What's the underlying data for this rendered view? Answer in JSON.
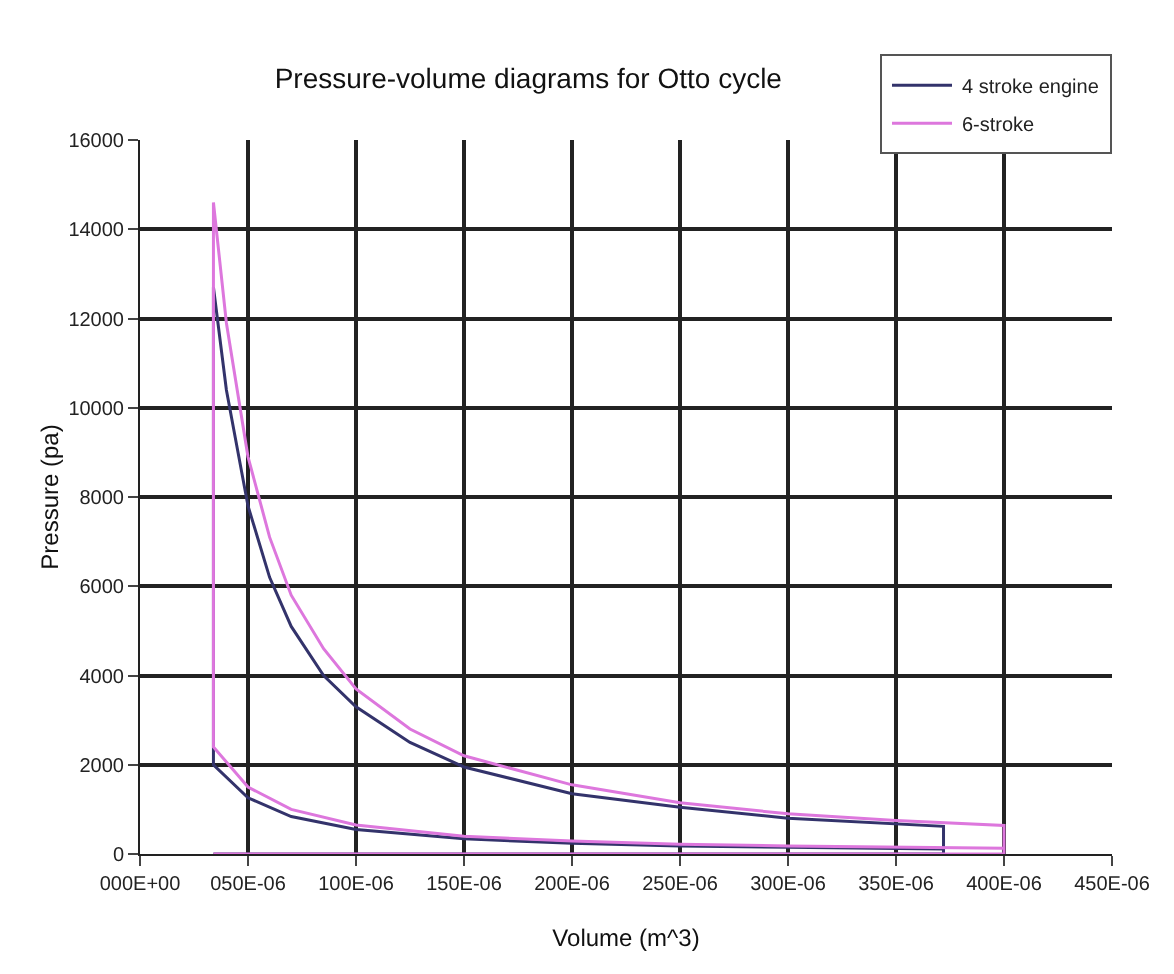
{
  "chart_data": {
    "type": "line",
    "title": "Pressure-volume diagrams for Otto cycle",
    "xlabel": "Volume (m^3)",
    "ylabel": "Pressure (pa)",
    "xlim": [
      0,
      0.00045
    ],
    "ylim": [
      0,
      16000
    ],
    "xticks": [
      {
        "value": 0,
        "label": "000E+00"
      },
      {
        "value": 5e-05,
        "label": "050E-06"
      },
      {
        "value": 0.0001,
        "label": "100E-06"
      },
      {
        "value": 0.00015,
        "label": "150E-06"
      },
      {
        "value": 0.0002,
        "label": "200E-06"
      },
      {
        "value": 0.00025,
        "label": "250E-06"
      },
      {
        "value": 0.0003,
        "label": "300E-06"
      },
      {
        "value": 0.00035,
        "label": "350E-06"
      },
      {
        "value": 0.0004,
        "label": "400E-06"
      },
      {
        "value": 0.00045,
        "label": "450E-06"
      }
    ],
    "yticks": [
      0,
      2000,
      4000,
      6000,
      8000,
      10000,
      12000,
      14000,
      16000
    ],
    "grid": true,
    "legend": "top right",
    "marker": "none",
    "line_style": "solid",
    "series": [
      {
        "name": "4 stroke engine",
        "color": "#33336b",
        "x": [
          3.4e-05,
          0.000372,
          0.000372,
          0.0003,
          0.00025,
          0.0002,
          0.00015,
          0.0001,
          7e-05,
          5e-05,
          3.4e-05,
          3.4e-05,
          4e-05,
          5e-05,
          6e-05,
          7e-05,
          8.5e-05,
          0.0001,
          0.000125,
          0.00015,
          0.0002,
          0.00025,
          0.0003,
          0.000372,
          0.000372
        ],
        "values": [
          0,
          0,
          110,
          150,
          180,
          240,
          340,
          550,
          840,
          1260,
          2000,
          12700,
          10400,
          7800,
          6200,
          5100,
          4000,
          3300,
          2500,
          1950,
          1350,
          1050,
          800,
          620,
          0
        ]
      },
      {
        "name": "6-stroke",
        "color": "#dd77dd",
        "x": [
          3.4e-05,
          0.0004,
          0.0004,
          0.0003,
          0.00025,
          0.0002,
          0.00015,
          0.0001,
          7e-05,
          5e-05,
          3.4e-05,
          3.4e-05,
          4e-05,
          5e-05,
          6e-05,
          7e-05,
          8.5e-05,
          0.0001,
          0.000125,
          0.00015,
          0.0002,
          0.00025,
          0.0003,
          0.00035,
          0.0004,
          0.0004
        ],
        "values": [
          0,
          0,
          130,
          180,
          220,
          290,
          400,
          650,
          1000,
          1500,
          2400,
          14600,
          11900,
          8900,
          7100,
          5800,
          4600,
          3700,
          2800,
          2200,
          1550,
          1150,
          900,
          750,
          640,
          0
        ]
      }
    ]
  }
}
